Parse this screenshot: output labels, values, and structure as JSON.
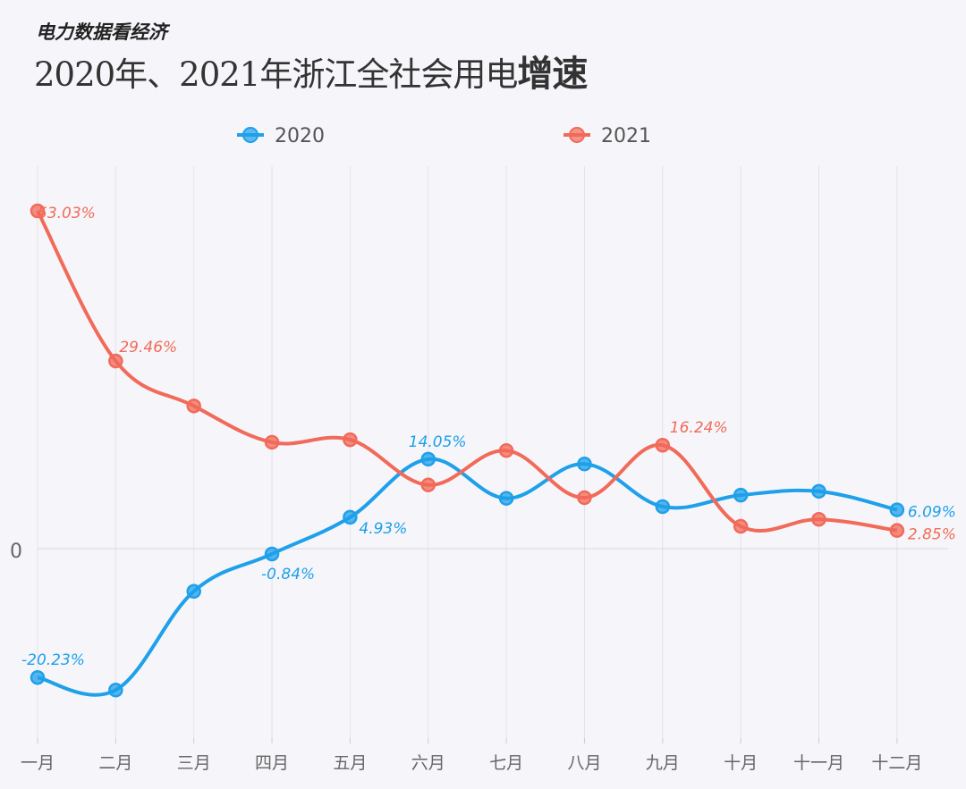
{
  "header": {
    "brand": "电力数据看经济",
    "title_main": "2020年、2021年浙江全社会用电",
    "title_bold": "增速"
  },
  "colors": {
    "2020": "#1ea0ea",
    "2021": "#f26a59",
    "grid": "#e2e2e8",
    "background": "#f6f6fa"
  },
  "chart_data": {
    "type": "line",
    "smooth": true,
    "categories": [
      "一月",
      "二月",
      "三月",
      "四月",
      "五月",
      "六月",
      "七月",
      "八月",
      "九月",
      "十月",
      "十一月",
      "十二月"
    ],
    "ylim": [
      -30,
      60
    ],
    "yticks": [
      "0"
    ],
    "grid": "vertical",
    "legend_position": "top",
    "series": [
      {
        "name": "2020",
        "values": [
          -20.23,
          -22.2,
          -6.7,
          -0.84,
          4.93,
          14.05,
          7.9,
          13.3,
          6.6,
          8.4,
          9.0,
          6.09
        ],
        "labels": {
          "0": "-20.23%",
          "3": "-0.84%",
          "4": "4.93%",
          "5": "14.05%",
          "11": "6.09%"
        }
      },
      {
        "name": "2021",
        "values": [
          53.03,
          29.46,
          22.4,
          16.7,
          17.1,
          10.0,
          15.4,
          8.0,
          16.24,
          3.5,
          4.6,
          2.85
        ],
        "labels": {
          "0": "53.03%",
          "1": "29.46%",
          "8": "16.24%",
          "11": "2.85%"
        }
      }
    ]
  }
}
